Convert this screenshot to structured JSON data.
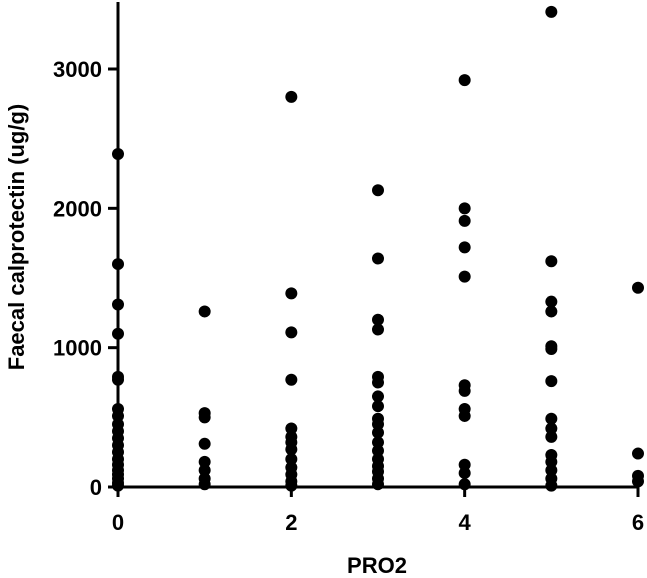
{
  "chart_data": {
    "type": "scatter",
    "title": "",
    "xlabel": "PRO2",
    "ylabel": "Faecal calprotectin (ug/g)",
    "xlim": [
      0,
      6
    ],
    "ylim": [
      0,
      3500
    ],
    "x_ticks": [
      0,
      2,
      4,
      6
    ],
    "x_tick_labels": [
      "0",
      "2",
      "4",
      "6"
    ],
    "y_ticks": [
      0,
      1000,
      2000,
      3000
    ],
    "y_tick_labels": [
      "0",
      "1000",
      "2000",
      "3000"
    ],
    "grid": false,
    "legend": "none",
    "marker_color": "#000000",
    "series": [
      {
        "points": [
          {
            "x": 0,
            "y": 2390
          },
          {
            "x": 0,
            "y": 1600
          },
          {
            "x": 0,
            "y": 1310
          },
          {
            "x": 0,
            "y": 1100
          },
          {
            "x": 0,
            "y": 790
          },
          {
            "x": 0,
            "y": 770
          },
          {
            "x": 0,
            "y": 560
          },
          {
            "x": 0,
            "y": 510
          },
          {
            "x": 0,
            "y": 450
          },
          {
            "x": 0,
            "y": 400
          },
          {
            "x": 0,
            "y": 350
          },
          {
            "x": 0,
            "y": 300
          },
          {
            "x": 0,
            "y": 250
          },
          {
            "x": 0,
            "y": 200
          },
          {
            "x": 0,
            "y": 160
          },
          {
            "x": 0,
            "y": 120
          },
          {
            "x": 0,
            "y": 90
          },
          {
            "x": 0,
            "y": 60
          },
          {
            "x": 0,
            "y": 30
          },
          {
            "x": 0,
            "y": 10
          },
          {
            "x": 1,
            "y": 1260
          },
          {
            "x": 1,
            "y": 530
          },
          {
            "x": 1,
            "y": 500
          },
          {
            "x": 1,
            "y": 310
          },
          {
            "x": 1,
            "y": 180
          },
          {
            "x": 1,
            "y": 120
          },
          {
            "x": 1,
            "y": 60
          },
          {
            "x": 1,
            "y": 20
          },
          {
            "x": 2,
            "y": 2800
          },
          {
            "x": 2,
            "y": 1390
          },
          {
            "x": 2,
            "y": 1110
          },
          {
            "x": 2,
            "y": 770
          },
          {
            "x": 2,
            "y": 420
          },
          {
            "x": 2,
            "y": 360
          },
          {
            "x": 2,
            "y": 320
          },
          {
            "x": 2,
            "y": 270
          },
          {
            "x": 2,
            "y": 200
          },
          {
            "x": 2,
            "y": 140
          },
          {
            "x": 2,
            "y": 90
          },
          {
            "x": 2,
            "y": 40
          },
          {
            "x": 2,
            "y": 10
          },
          {
            "x": 3,
            "y": 2130
          },
          {
            "x": 3,
            "y": 1640
          },
          {
            "x": 3,
            "y": 1200
          },
          {
            "x": 3,
            "y": 1130
          },
          {
            "x": 3,
            "y": 790
          },
          {
            "x": 3,
            "y": 750
          },
          {
            "x": 3,
            "y": 650
          },
          {
            "x": 3,
            "y": 580
          },
          {
            "x": 3,
            "y": 490
          },
          {
            "x": 3,
            "y": 450
          },
          {
            "x": 3,
            "y": 390
          },
          {
            "x": 3,
            "y": 320
          },
          {
            "x": 3,
            "y": 260
          },
          {
            "x": 3,
            "y": 200
          },
          {
            "x": 3,
            "y": 150
          },
          {
            "x": 3,
            "y": 110
          },
          {
            "x": 3,
            "y": 60
          },
          {
            "x": 3,
            "y": 20
          },
          {
            "x": 4,
            "y": 2920
          },
          {
            "x": 4,
            "y": 2000
          },
          {
            "x": 4,
            "y": 1910
          },
          {
            "x": 4,
            "y": 1720
          },
          {
            "x": 4,
            "y": 1510
          },
          {
            "x": 4,
            "y": 730
          },
          {
            "x": 4,
            "y": 690
          },
          {
            "x": 4,
            "y": 560
          },
          {
            "x": 4,
            "y": 510
          },
          {
            "x": 4,
            "y": 160
          },
          {
            "x": 4,
            "y": 100
          },
          {
            "x": 4,
            "y": 20
          },
          {
            "x": 5,
            "y": 3410
          },
          {
            "x": 5,
            "y": 1620
          },
          {
            "x": 5,
            "y": 1330
          },
          {
            "x": 5,
            "y": 1260
          },
          {
            "x": 5,
            "y": 1010
          },
          {
            "x": 5,
            "y": 990
          },
          {
            "x": 5,
            "y": 760
          },
          {
            "x": 5,
            "y": 490
          },
          {
            "x": 5,
            "y": 420
          },
          {
            "x": 5,
            "y": 360
          },
          {
            "x": 5,
            "y": 230
          },
          {
            "x": 5,
            "y": 180
          },
          {
            "x": 5,
            "y": 120
          },
          {
            "x": 5,
            "y": 60
          },
          {
            "x": 5,
            "y": 10
          },
          {
            "x": 6,
            "y": 1430
          },
          {
            "x": 6,
            "y": 240
          },
          {
            "x": 6,
            "y": 80
          },
          {
            "x": 6,
            "y": 40
          }
        ]
      }
    ]
  }
}
